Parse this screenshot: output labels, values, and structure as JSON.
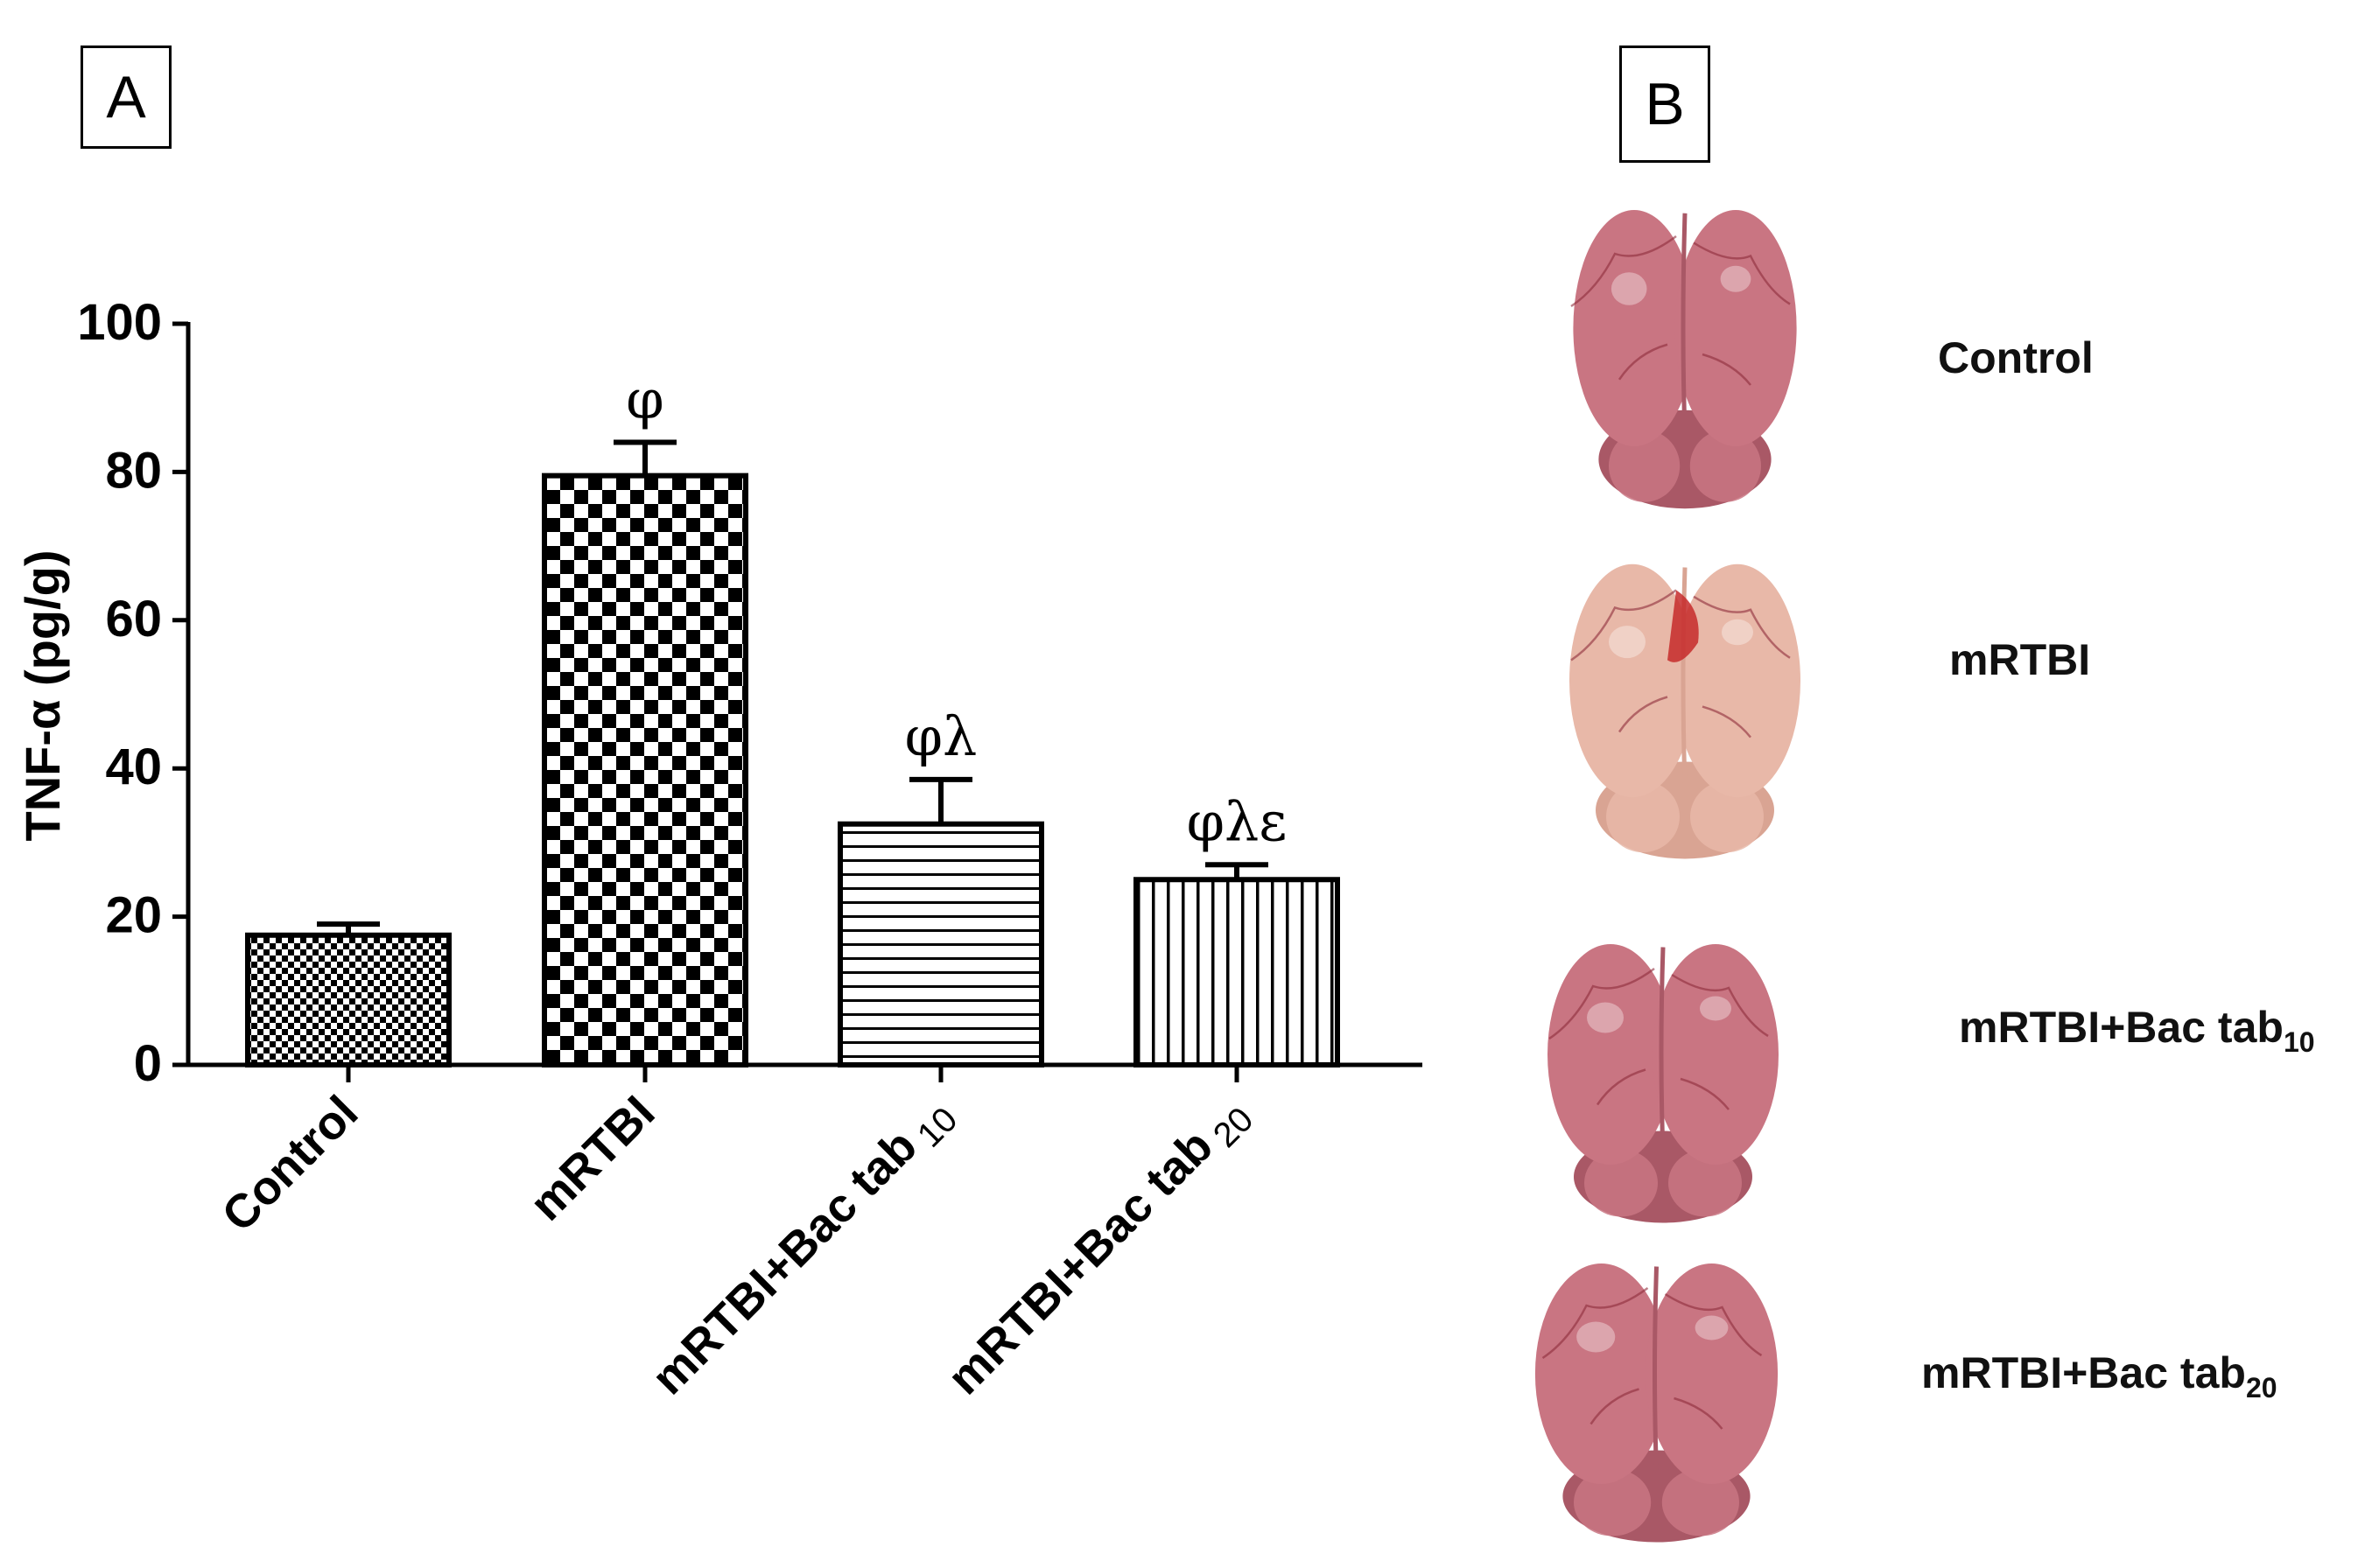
{
  "panel_a": {
    "label": "A"
  },
  "panel_b": {
    "label": "B"
  },
  "chart_data": {
    "type": "bar",
    "title": "",
    "xlabel": "",
    "ylabel": "TNF-α (pg/g)",
    "ylim": [
      0,
      100
    ],
    "yticks": [
      0,
      20,
      40,
      60,
      80,
      100
    ],
    "categories": [
      {
        "name": "Control",
        "main": "Control",
        "sub": ""
      },
      {
        "name": "mRTBI",
        "main": "mRTBI",
        "sub": ""
      },
      {
        "name": "mRTBI+Bac tab 10",
        "main": "mRTBI+Bac tab",
        "sub": "10"
      },
      {
        "name": "mRTBI+Bac tab 20",
        "main": "mRTBI+Bac tab",
        "sub": "20"
      }
    ],
    "values": [
      17.5,
      79.5,
      32.5,
      25
    ],
    "errors": [
      1.5,
      4.5,
      6,
      2
    ],
    "patterns": [
      "fine-checker",
      "coarse-checker",
      "horizontal-stripes",
      "vertical-stripes"
    ],
    "significance_labels": [
      "",
      "φ",
      "φλ",
      "φλε"
    ]
  },
  "brains": [
    {
      "name": "control",
      "label_main": "Control",
      "label_sub": ""
    },
    {
      "name": "mrtbi",
      "label_main": "mRTBI",
      "label_sub": ""
    },
    {
      "name": "bac-tab-10",
      "label_main": "mRTBI+Bac tab",
      "label_sub": "10"
    },
    {
      "name": "bac-tab-20",
      "label_main": "mRTBI+Bac  tab",
      "label_sub": "20"
    }
  ],
  "colors": {
    "axis": "#000000",
    "brain_pink": "#c97582",
    "brain_pale": "#e8b8a8",
    "vessel": "#8e2b3b",
    "lesion": "#c62a2a"
  }
}
